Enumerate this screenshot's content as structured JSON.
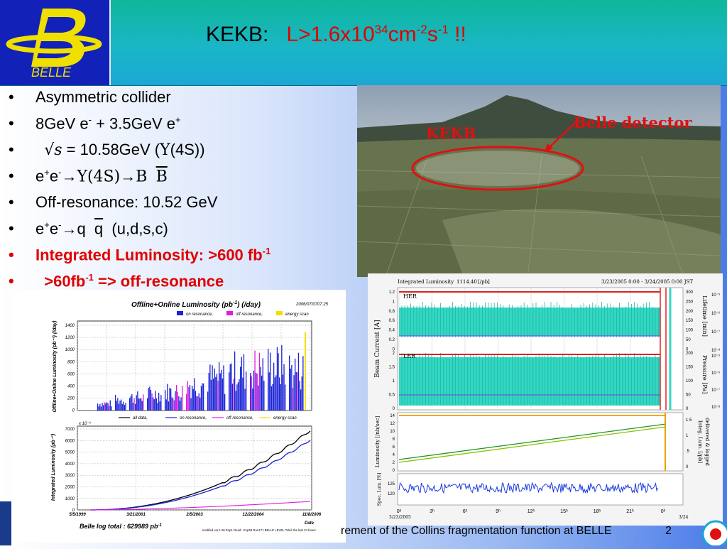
{
  "header": {
    "logo_text": "BELLE",
    "title_plain": "KEKB:",
    "title_red_a": "L>1.6x10",
    "title_red_sup1": "34",
    "title_red_b": "cm",
    "title_red_sup2": "-2",
    "title_red_c": "s",
    "title_red_sup3": "-1",
    "title_red_d": " !!"
  },
  "bullets": {
    "b1": "Asymmetric collider",
    "b2_a": "8GeV e",
    "b2_sup1": "-",
    "b2_b": " + 3.5GeV e",
    "b2_sup2": "+",
    "b3_a": "√s",
    "b3_b": " = 10.58GeV (",
    "b3_c": "Υ",
    "b3_d": "(4S))",
    "b4_a": "e",
    "b4_sup1": "+",
    "b4_b": "e",
    "b4_sup2": "-",
    "b4_c": "→",
    "b4_d": "Υ(4S)",
    "b4_e": "→",
    "b4_f": "B",
    "b4_g": "B",
    "b5": "Off-resonance: 10.52 GeV",
    "b6_a": "e",
    "b6_sup1": "+",
    "b6_b": "e",
    "b6_sup2": "-",
    "b6_c": "→",
    "b6_d": "q",
    "b6_e": "q",
    "b6_f": "(u,d,s,c)",
    "b7_a": "Integrated Luminosity: >600 fb",
    "b7_sup": "-1",
    "b8_a": ">60fb",
    "b8_sup": "-1",
    "b8_b": " =>  off-resonance"
  },
  "photo": {
    "label_kekb": "KEKB",
    "label_belle": "Belle detector"
  },
  "lumi_chart": {
    "title": "Offline+Online Luminosity (pb",
    "title_sup": "-1",
    "title_end": ") (/day)",
    "date": "2006/07/07",
    "time": "07.25",
    "legend_top": [
      "on resonance,",
      "off resonance,",
      "energy scan"
    ],
    "legend_colors": [
      "#1a22d6",
      "#e01ae0",
      "#f0e000"
    ],
    "top_ylabel": "Offline+Online Luminosity (pb⁻¹) (/day)",
    "top_yticks": [
      "1400",
      "1200",
      "1000",
      "800",
      "600",
      "400",
      "200",
      "0"
    ],
    "legend_bottom": [
      "all data,",
      "on resonance,",
      "off resonance,",
      "energy scan"
    ],
    "legend_bottom_colors": [
      "#000000",
      "#1a22d6",
      "#e01ae0",
      "#f0e000"
    ],
    "bottom_ylabel": "Integrated Luminosity (pb⁻¹)",
    "bottom_scale": "x 10⁻³",
    "bottom_yticks": [
      "7000",
      "6000",
      "5000",
      "4000",
      "3000",
      "2000",
      "1000",
      "0"
    ],
    "xticks": [
      "5/5/1999",
      "3/21/2001",
      "2/5/2003",
      "12/22/2004",
      "11/8/2006"
    ],
    "xlabel": "Date",
    "log_total": "Belle log total : 629989 pb",
    "log_total_sup": "-1",
    "footnote": "modifed ver.1.06  Exp1 Read - Exp53 Run171  BELLE LEVEL Total: the last 24 hours"
  },
  "kekb_monitor": {
    "header_a": "Integrated Luminosity",
    "header_b": "1114.40",
    "header_c": "[/pb]",
    "header_date": "3/23/2005 0:00 - 3/24/2005 0:00 JST",
    "label_her": "HER",
    "label_ler": "LER",
    "ylabel_beam": "Beam Current [A]",
    "ylabel_lumi": "Luminosity [/nb/sec]",
    "ylabel_spec": "Spec. Lum. [%]",
    "right_label_1": "Lifetime [min]",
    "right_label_2": "Pressure [Pa]",
    "right_label_3": "Integ. Lum. [/pb]",
    "right_label_4": "delivered & logged",
    "beam_ticks_left": [
      "1.2",
      "1",
      "0.8",
      "0.6",
      "0.4",
      "0.2",
      "0",
      "2",
      "1.5",
      "1",
      "0.5",
      "0"
    ],
    "lifetime_ticks": [
      "300",
      "250",
      "200",
      "150",
      "100",
      "50",
      "0",
      "200",
      "150",
      "100",
      "50",
      "0"
    ],
    "pressure_ticks": [
      "10⁻⁵",
      "10⁻⁶",
      "10⁻⁷",
      "10⁻⁸",
      "10⁻⁵",
      "10⁻⁶",
      "10⁻⁷",
      "10⁻⁸"
    ],
    "lumi_ticks": [
      "14",
      "12",
      "10",
      "8",
      "6",
      "4",
      "2",
      "0"
    ],
    "integ_ticks": [
      "1.5",
      "1",
      ".5",
      "0"
    ],
    "spec_ticks": [
      "125",
      "120"
    ],
    "xticks": [
      "0ʰ",
      "3ʰ",
      "6ʰ",
      "9ʰ",
      "12ʰ",
      "15ʰ",
      "18ʰ",
      "21ʰ",
      "0ʰ"
    ],
    "x_date_start": "3/23/2005",
    "x_date_end": "3/24"
  },
  "footer": {
    "text": "rement of the Collins fragmentation function at BELLE",
    "page": "2"
  }
}
